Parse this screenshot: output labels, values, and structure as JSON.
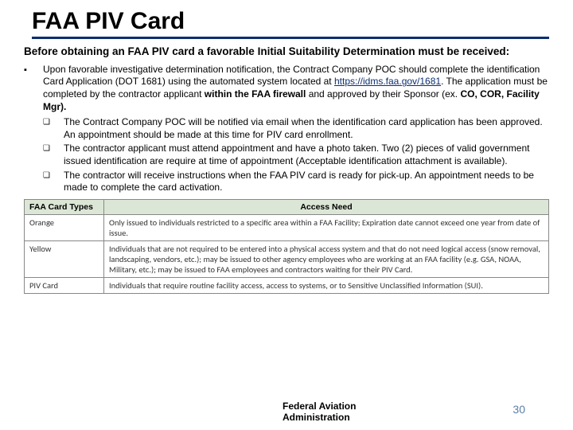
{
  "title": "FAA PIV Card",
  "intro": "Before obtaining an FAA PIV card a favorable Initial Suitability Determination must be received:",
  "bullet1_pre": "Upon favorable investigative determination notification, the Contract Company POC should complete the identification Card Application (DOT 1681) using the automated system located at ",
  "bullet1_link": "https://idms.faa.gov/1681",
  "bullet1_mid": ". The application must be completed by the contractor applicant ",
  "bullet1_strong1": "within the FAA firewall",
  "bullet1_post1": " and approved by their Sponsor (ex. ",
  "bullet1_strong2": "CO, COR, Facility Mgr).",
  "sub1": "The Contract Company POC will be notified via email when the identification card application has been approved. An appointment should be made at this time for PIV card enrollment.",
  "sub2": "The contractor applicant must attend appointment and have a photo taken. Two (2) pieces of valid government issued identification are require at time of appointment (Acceptable identification attachment is available).",
  "sub3": "The contractor will receive instructions when the FAA PIV card is ready for pick-up. An appointment needs to be made to complete the card activation.",
  "table": {
    "h1": "FAA Card Types",
    "h2": "Access Need",
    "r1c1": "Orange",
    "r1c2": "Only issued to individuals restricted to a specific area within a FAA Facility; Expiration date cannot exceed one year from date of issue.",
    "r2c1": "Yellow",
    "r2c2": "Individuals that are not required to be entered into a physical access system and that do not need logical access (snow removal, landscaping, vendors, etc.); may be issued to other agency employees who are working at an FAA facility (e.g. GSA, NOAA, Military, etc.); may be issued to FAA employees and contractors waiting for their PIV Card.",
    "r3c1": "PIV Card",
    "r3c2": "Individuals that require routine facility access, access to systems, or to Sensitive Unclassified Information (SUI)."
  },
  "footer_org": "Federal Aviation\nAdministration",
  "page_num": "30",
  "colors": {
    "brand_blue": "#0b2e6f",
    "header_green": "#dce6d6",
    "page_num_color": "#5a7da8"
  }
}
